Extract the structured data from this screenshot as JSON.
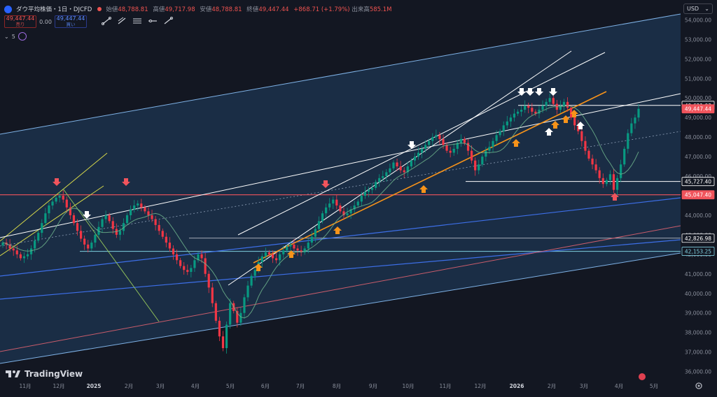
{
  "header": {
    "symbol": "ダウ平均株価・1日・DJCFD",
    "ohlc": {
      "open_label": "始値",
      "open": "48,788.81",
      "high_label": "高値",
      "high": "49,717.98",
      "low_label": "安値",
      "low": "48,788.81",
      "close_label": "終値",
      "close": "49,447.44",
      "change": "+868.71 (+1.79%)",
      "volume_label": "出来高",
      "volume": "585.1M"
    }
  },
  "trade": {
    "sell_price": "49,447.44",
    "sell_label": "売り",
    "spread": "0.00",
    "buy_price": "49,447.44",
    "buy_label": "買い"
  },
  "indicator": {
    "period": "5"
  },
  "currency": {
    "label": "USD"
  },
  "branding": {
    "name": "TradingView"
  },
  "colors": {
    "background": "#131722",
    "channel_fill": "#1e3551",
    "up_candle": "#089981",
    "down_candle": "#f23645",
    "orange_trend": "#f7931a",
    "resistance_red": "#f0545c",
    "blue_line": "#3d6fe8"
  },
  "chart_data": {
    "type": "candlestick",
    "x_ticks": [
      "11月",
      "12月",
      "2025",
      "2月",
      "3月",
      "4月",
      "5月",
      "6月",
      "7月",
      "8月",
      "9月",
      "10月",
      "11月",
      "12月",
      "2026",
      "2月",
      "3月",
      "4月",
      "5月"
    ],
    "y_ticks": [
      36000,
      37000,
      38000,
      39000,
      40000,
      41000,
      42000,
      43000,
      44000,
      45000,
      46000,
      47000,
      48000,
      49000,
      50000,
      51000,
      52000,
      53000,
      54000
    ],
    "ylim": [
      35700,
      54300
    ],
    "price_labels": [
      {
        "value": 49621.03,
        "text": "49,621.03",
        "style": "white"
      },
      {
        "value": 49447.44,
        "text": "49,447.44",
        "style": "red"
      },
      {
        "value": 45727.4,
        "text": "45,727.40",
        "style": "white"
      },
      {
        "value": 45047.4,
        "text": "45,047.40",
        "style": "red"
      },
      {
        "value": 42826.98,
        "text": "42,826.98",
        "style": "white"
      },
      {
        "value": 42153.25,
        "text": "42,153.25",
        "style": "cyan"
      }
    ],
    "approx_closes": [
      42600,
      42500,
      42300,
      42200,
      42000,
      41800,
      41900,
      42000,
      42300,
      42700,
      43100,
      43600,
      44100,
      44500,
      44700,
      44900,
      45000,
      44800,
      44400,
      44000,
      43600,
      43200,
      42800,
      42500,
      42300,
      42600,
      43000,
      43400,
      43800,
      44000,
      43700,
      43300,
      43000,
      43200,
      43600,
      44000,
      44300,
      44500,
      44600,
      44400,
      44200,
      44000,
      43800,
      43500,
      43200,
      42900,
      42600,
      42300,
      42000,
      41700,
      41400,
      41200,
      41100,
      41300,
      41700,
      42000,
      41800,
      41000,
      40300,
      39500,
      38600,
      37800,
      37200,
      38400,
      39500,
      39100,
      38500,
      39000,
      39800,
      40400,
      40900,
      41200,
      41600,
      41900,
      42100,
      42000,
      41800,
      41700,
      42000,
      42200,
      42400,
      42500,
      42300,
      42200,
      42100,
      42300,
      42600,
      42900,
      43300,
      43700,
      44100,
      44400,
      44600,
      44800,
      44500,
      44200,
      44000,
      44100,
      44300,
      44500,
      44700,
      45000,
      45200,
      45300,
      45400,
      45700,
      45900,
      46000,
      46200,
      46400,
      46700,
      46500,
      46300,
      46200,
      46500,
      46800,
      47000,
      47200,
      47400,
      47600,
      47800,
      48000,
      48100,
      47900,
      47600,
      47300,
      47200,
      47400,
      47700,
      47900,
      47700,
      47300,
      46800,
      46300,
      46600,
      47000,
      47300,
      47500,
      47800,
      48100,
      48300,
      48600,
      48800,
      49000,
      49200,
      49300,
      49400,
      49600,
      49500,
      49300,
      49200,
      49400,
      49600,
      49800,
      50000,
      49700,
      49400,
      49600,
      49800,
      49500,
      49000,
      48600,
      48300,
      47800,
      47300,
      46900,
      46600,
      46300,
      45900,
      45600,
      45800,
      46100,
      45300,
      45900,
      46600,
      47400,
      48200,
      48700,
      49000,
      49447
    ]
  }
}
